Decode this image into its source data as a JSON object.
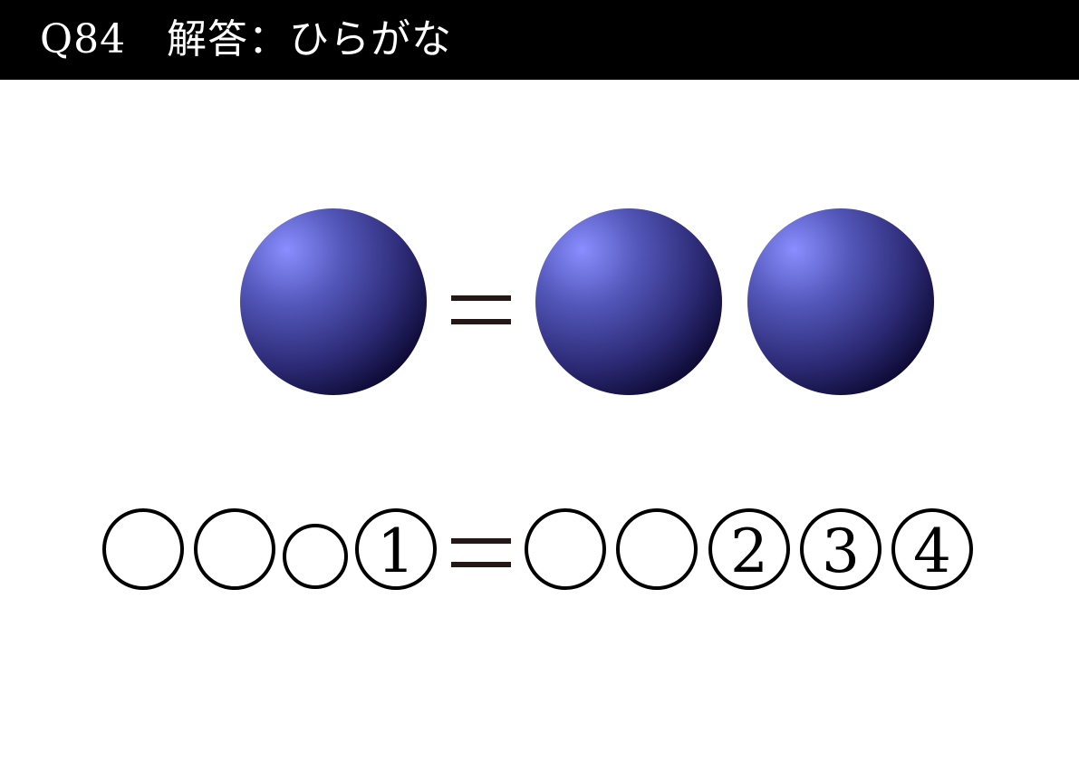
{
  "header": {
    "title": "Q84　解答：ひらがな"
  },
  "equation_top": {
    "left_balls": 1,
    "equals_sign": "＝",
    "right_balls": 2,
    "ball_colors": {
      "highlight": "#8A8EFF",
      "mid": "#3A3A8C",
      "shadow": "#0B0830"
    }
  },
  "equation_bottom": {
    "left_slots": [
      "",
      "",
      "",
      "①"
    ],
    "equals_sign": "＝",
    "right_slots": [
      "",
      "",
      "②",
      "③",
      "④"
    ],
    "slot_numbers": [
      "1",
      "2",
      "3",
      "4"
    ]
  }
}
